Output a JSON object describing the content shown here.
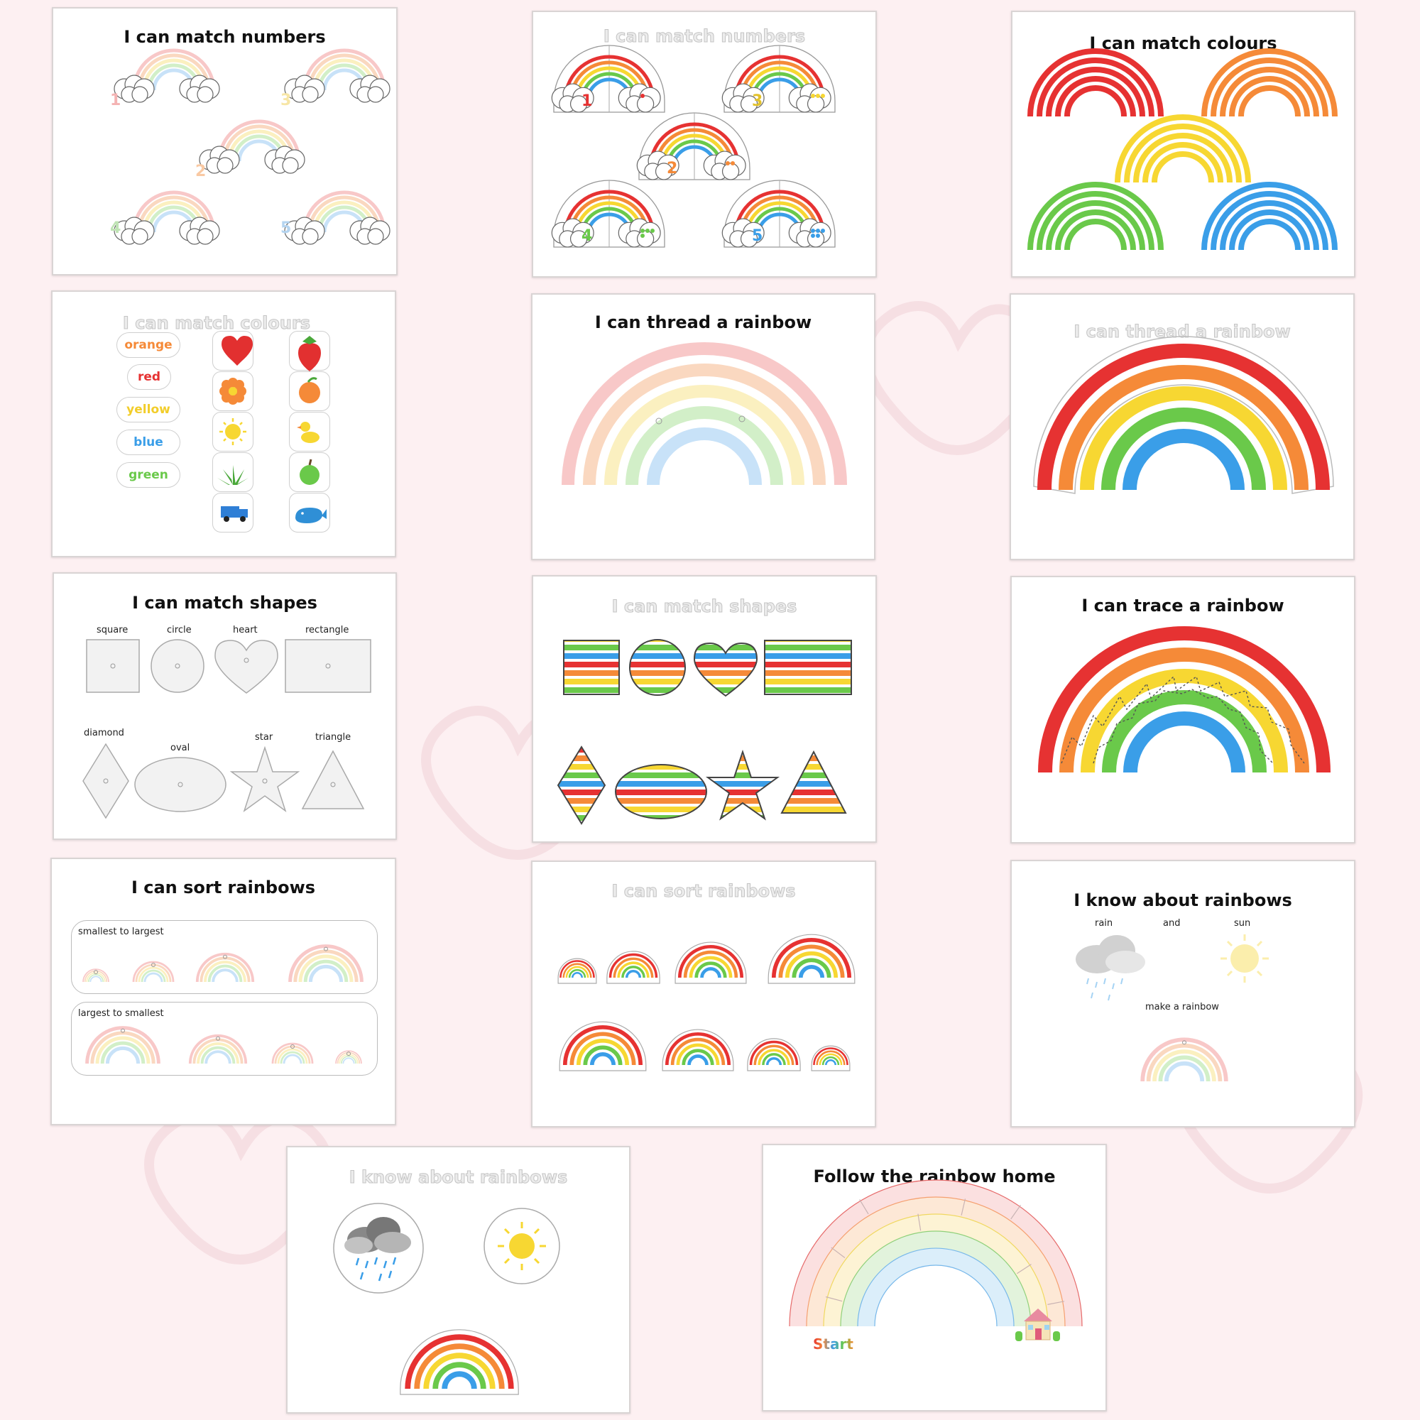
{
  "colors": {
    "rainbow": [
      "#e63232",
      "#f58a38",
      "#f7d732",
      "#6ac94a",
      "#3a9ee8"
    ],
    "pastel": [
      "#f8c8c8",
      "#fad8c0",
      "#fbf0c0",
      "#d2efc8",
      "#c8e2f8"
    ],
    "background": "#fdf0f2"
  },
  "cards": {
    "c1": {
      "title": "I can match numbers",
      "numbers": [
        "1",
        "3",
        "2",
        "4",
        "5"
      ]
    },
    "c2": {
      "title": "I can match numbers",
      "numbers": [
        "1",
        "3",
        "2",
        "4",
        "5"
      ]
    },
    "c3": {
      "title": "I can match colours"
    },
    "c4": {
      "title": "I can match colours",
      "colour_words": [
        "orange",
        "red",
        "yellow",
        "blue",
        "green"
      ],
      "pictures": [
        "heart",
        "strawberry",
        "flower",
        "orange",
        "sun",
        "duck",
        "grass",
        "apple",
        "truck",
        "whale"
      ]
    },
    "c5": {
      "title": "I can thread a rainbow"
    },
    "c6": {
      "title": "I can thread a rainbow"
    },
    "c7": {
      "title": "I can match shapes",
      "shapes": [
        "square",
        "circle",
        "heart",
        "rectangle",
        "diamond",
        "oval",
        "star",
        "triangle"
      ]
    },
    "c8": {
      "title": "I can match shapes"
    },
    "c9": {
      "title": "I can trace a rainbow"
    },
    "c10": {
      "title": "I can sort rainbows",
      "row1": "smallest to largest",
      "row2": "largest to smallest"
    },
    "c11": {
      "title": "I can sort rainbows"
    },
    "c12": {
      "title": "I know about rainbows",
      "rain": "rain",
      "and": "and",
      "sun": "sun",
      "make": "make a rainbow"
    },
    "c13": {
      "title": "I know about rainbows",
      "pictures": [
        "rain-cloud",
        "sun",
        "rainbow"
      ]
    },
    "c14": {
      "title": "Follow the rainbow home",
      "start": "Start",
      "home": "house"
    }
  }
}
